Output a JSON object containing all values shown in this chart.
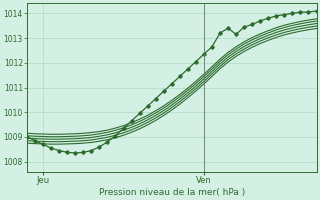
{
  "xlabel": "Pression niveau de la mer( hPa )",
  "bg_color": "#d4f0e4",
  "grid_color": "#b0d8c4",
  "line_color": "#2d6b2d",
  "ylim": [
    1007.6,
    1014.4
  ],
  "yticks": [
    1008,
    1009,
    1010,
    1011,
    1012,
    1013,
    1014
  ],
  "xtick_labels": [
    "Jeu",
    "Ven"
  ],
  "xtick_positions": [
    2,
    22
  ],
  "vline_idx": 22,
  "n_points": 37,
  "series": {
    "main_with_markers": [
      1009.0,
      1008.85,
      1008.7,
      1008.55,
      1008.45,
      1008.38,
      1008.35,
      1008.38,
      1008.45,
      1008.6,
      1008.8,
      1009.05,
      1009.35,
      1009.65,
      1009.95,
      1010.25,
      1010.55,
      1010.85,
      1011.15,
      1011.45,
      1011.75,
      1012.05,
      1012.35,
      1012.65,
      1013.2,
      1013.4,
      1013.15,
      1013.45,
      1013.55,
      1013.7,
      1013.8,
      1013.9,
      1013.95,
      1014.0,
      1014.05,
      1014.05,
      1014.1
    ],
    "smooth1": [
      1009.15,
      1009.13,
      1009.12,
      1009.11,
      1009.11,
      1009.12,
      1009.13,
      1009.15,
      1009.18,
      1009.22,
      1009.28,
      1009.36,
      1009.46,
      1009.58,
      1009.72,
      1009.88,
      1010.06,
      1010.26,
      1010.48,
      1010.72,
      1010.98,
      1011.25,
      1011.54,
      1011.84,
      1012.15,
      1012.42,
      1012.65,
      1012.85,
      1013.02,
      1013.17,
      1013.3,
      1013.42,
      1013.52,
      1013.6,
      1013.67,
      1013.73,
      1013.78
    ],
    "smooth2": [
      1009.05,
      1009.03,
      1009.02,
      1009.01,
      1009.01,
      1009.02,
      1009.03,
      1009.05,
      1009.08,
      1009.13,
      1009.19,
      1009.27,
      1009.37,
      1009.49,
      1009.63,
      1009.79,
      1009.97,
      1010.17,
      1010.39,
      1010.63,
      1010.89,
      1011.16,
      1011.45,
      1011.75,
      1012.06,
      1012.33,
      1012.56,
      1012.76,
      1012.93,
      1013.08,
      1013.21,
      1013.33,
      1013.43,
      1013.51,
      1013.58,
      1013.64,
      1013.69
    ],
    "smooth3": [
      1008.95,
      1008.93,
      1008.92,
      1008.91,
      1008.91,
      1008.92,
      1008.93,
      1008.95,
      1008.98,
      1009.03,
      1009.09,
      1009.17,
      1009.27,
      1009.39,
      1009.53,
      1009.69,
      1009.87,
      1010.07,
      1010.29,
      1010.53,
      1010.79,
      1011.06,
      1011.35,
      1011.65,
      1011.96,
      1012.23,
      1012.46,
      1012.66,
      1012.83,
      1012.98,
      1013.11,
      1013.23,
      1013.33,
      1013.41,
      1013.48,
      1013.54,
      1013.59
    ],
    "smooth4": [
      1008.85,
      1008.83,
      1008.82,
      1008.81,
      1008.81,
      1008.82,
      1008.83,
      1008.85,
      1008.88,
      1008.93,
      1008.99,
      1009.07,
      1009.17,
      1009.29,
      1009.43,
      1009.59,
      1009.77,
      1009.97,
      1010.19,
      1010.43,
      1010.69,
      1010.96,
      1011.25,
      1011.55,
      1011.86,
      1012.13,
      1012.36,
      1012.56,
      1012.73,
      1012.88,
      1013.01,
      1013.13,
      1013.23,
      1013.31,
      1013.38,
      1013.44,
      1013.49
    ],
    "smooth5": [
      1008.75,
      1008.73,
      1008.72,
      1008.71,
      1008.71,
      1008.72,
      1008.73,
      1008.75,
      1008.78,
      1008.83,
      1008.89,
      1008.97,
      1009.07,
      1009.19,
      1009.33,
      1009.49,
      1009.67,
      1009.87,
      1010.09,
      1010.33,
      1010.59,
      1010.86,
      1011.15,
      1011.45,
      1011.76,
      1012.03,
      1012.26,
      1012.46,
      1012.63,
      1012.78,
      1012.91,
      1013.03,
      1013.13,
      1013.21,
      1013.28,
      1013.34,
      1013.39
    ]
  }
}
